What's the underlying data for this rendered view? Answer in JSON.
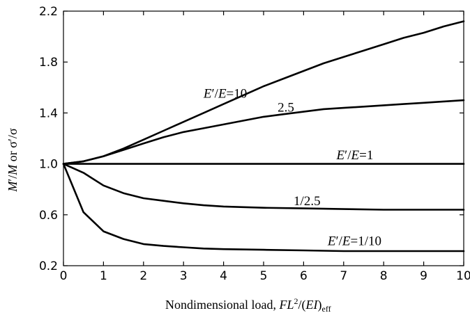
{
  "chart_data": {
    "type": "line",
    "xlabel": "Nondimensional load, FL²/(EI)eff",
    "xlabel_parts": {
      "text": "Nondimensional load, ",
      "F": "F",
      "L": "L",
      "sup": "2",
      "paren": "/(",
      "EI": "EI",
      "close": ")",
      "sub": "eff"
    },
    "ylabel": "M′/M or σ′/σ",
    "ylabel_parts": {
      "m1": "M",
      "prime1": "′/",
      "m2": "M",
      "or": " or ",
      "s": "σ′/σ"
    },
    "xlim": [
      0,
      10
    ],
    "ylim": [
      0.2,
      2.2
    ],
    "x_ticks": [
      "0",
      "1",
      "2",
      "3",
      "4",
      "5",
      "6",
      "7",
      "8",
      "9",
      "10"
    ],
    "y_ticks": [
      "0.2",
      "0.6",
      "1.0",
      "1.4",
      "1.8",
      "2.2"
    ],
    "grid": false,
    "series": [
      {
        "label_text": "E′/E=10",
        "x": [
          0,
          0.5,
          1,
          1.5,
          2,
          2.5,
          3,
          3.5,
          4,
          4.5,
          5,
          5.5,
          6,
          6.5,
          7,
          7.5,
          8,
          8.5,
          9,
          9.5,
          10
        ],
        "y": [
          1.0,
          1.02,
          1.06,
          1.12,
          1.19,
          1.26,
          1.33,
          1.4,
          1.47,
          1.54,
          1.61,
          1.67,
          1.73,
          1.79,
          1.84,
          1.89,
          1.94,
          1.99,
          2.03,
          2.08,
          2.12
        ]
      },
      {
        "label_text": "2.5",
        "x": [
          0,
          0.5,
          1,
          1.5,
          2,
          2.5,
          3,
          3.5,
          4,
          4.5,
          5,
          5.5,
          6,
          6.5,
          7,
          7.5,
          8,
          8.5,
          9,
          9.5,
          10
        ],
        "y": [
          1.0,
          1.02,
          1.06,
          1.11,
          1.16,
          1.21,
          1.25,
          1.28,
          1.31,
          1.34,
          1.37,
          1.39,
          1.41,
          1.43,
          1.44,
          1.45,
          1.46,
          1.47,
          1.48,
          1.49,
          1.5
        ]
      },
      {
        "label_text": "E′/E=1",
        "x": [
          0,
          10
        ],
        "y": [
          1.0,
          1.0
        ]
      },
      {
        "label_text": "1/2.5",
        "x": [
          0,
          0.5,
          1,
          1.5,
          2,
          2.5,
          3,
          3.5,
          4,
          4.5,
          5,
          6,
          7,
          8,
          9,
          10
        ],
        "y": [
          1.0,
          0.93,
          0.83,
          0.77,
          0.73,
          0.71,
          0.69,
          0.675,
          0.665,
          0.66,
          0.655,
          0.65,
          0.645,
          0.64,
          0.64,
          0.64
        ]
      },
      {
        "label_text": "E′/E=1/10",
        "x": [
          0,
          0.5,
          1,
          1.5,
          2,
          2.5,
          3,
          3.5,
          4,
          5,
          6,
          7,
          8,
          9,
          10
        ],
        "y": [
          1.0,
          0.62,
          0.47,
          0.41,
          0.37,
          0.355,
          0.345,
          0.335,
          0.33,
          0.325,
          0.32,
          0.315,
          0.315,
          0.315,
          0.315
        ]
      }
    ],
    "annotations": [
      {
        "text": "2.5",
        "x": 5.35,
        "y": 1.41
      },
      {
        "text": "1/2.5",
        "x": 5.75,
        "y": 0.675
      },
      {
        "italic1": "E",
        "prime": "′/",
        "italic2": "E",
        "rest": "=10",
        "x": 3.5,
        "y": 1.52
      },
      {
        "italic1": "E",
        "prime": "′/",
        "italic2": "E",
        "rest": "=1",
        "x": 6.82,
        "y": 1.035
      },
      {
        "italic1": "E",
        "prime": "′/",
        "italic2": "E",
        "rest": "=1/10",
        "x": 6.6,
        "y": 0.36
      }
    ]
  }
}
